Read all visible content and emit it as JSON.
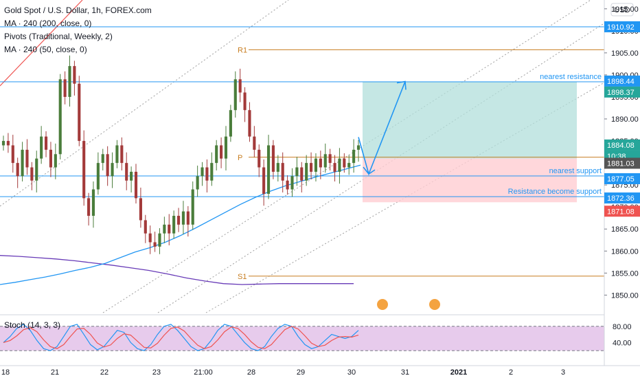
{
  "legend": {
    "title": "Gold Spot / U.S. Dollar, 1h, FOREX.com",
    "ma200": "MA · 240 (200, close, 0)",
    "pivots": "Pivots (Traditional, Weekly, 2)",
    "ma50": "MA · 240 (50, close, 0)"
  },
  "currency_label": "USD",
  "stoch_label": "Stoch (14, 3, 3)",
  "colors": {
    "up": "#26a69a",
    "down": "#ef5350",
    "candle_up": "#4a7d3b",
    "candle_down": "#a33a3a",
    "hline": "#2196f3",
    "pivot": "#c77c1e",
    "ma_fast": "#2196f3",
    "ma_slow": "#673ab7",
    "channel": "#9e9e9e",
    "stoch_bg": "#e1bee7",
    "profit": "#b2dfdb",
    "loss": "#ffcdd2"
  },
  "chart_data": {
    "type": "candlestick",
    "symbol": "XAUUSD",
    "interval": "1h",
    "ylim": [
      1846,
      1917
    ],
    "y_ticks": [
      1850.0,
      1855.0,
      1860.0,
      1865.0,
      1870.0,
      1875.0,
      1880.0,
      1885.0,
      1890.0,
      1895.0,
      1900.0,
      1905.0,
      1910.0,
      1915.0
    ],
    "x_ticks": [
      "18",
      "21",
      "22",
      "23",
      "21:00",
      "28",
      "29",
      "30",
      "31",
      "2021",
      "2",
      "3"
    ],
    "close_series": [
      1885,
      1884,
      1880,
      1877,
      1883,
      1879,
      1876,
      1881,
      1886,
      1883,
      1879,
      1882,
      1899,
      1895,
      1902,
      1898,
      1885,
      1872,
      1868,
      1874,
      1880,
      1882,
      1877,
      1880,
      1884,
      1880,
      1876,
      1878,
      1872,
      1867,
      1864,
      1862,
      1861,
      1864,
      1866,
      1864,
      1868,
      1866,
      1869,
      1866,
      1874,
      1877,
      1879,
      1876,
      1880,
      1884,
      1881,
      1886,
      1892,
      1899,
      1896,
      1892,
      1886,
      1883,
      1879,
      1873,
      1884,
      1878,
      1880,
      1876,
      1874,
      1877,
      1879,
      1876,
      1880,
      1878,
      1881,
      1879,
      1882,
      1880,
      1878,
      1881,
      1879,
      1880,
      1883,
      1884
    ],
    "hlines": [
      {
        "price": 1910.92,
        "label": ""
      },
      {
        "price": 1898.44,
        "label": "nearest resistance"
      },
      {
        "price": 1877.05,
        "label": "nearest support"
      },
      {
        "price": 1872.36,
        "label": "Resistance become support"
      }
    ],
    "pivots": [
      {
        "name": "R1",
        "price": 1905.7
      },
      {
        "name": "P",
        "price": 1881.3
      },
      {
        "name": "S1",
        "price": 1854.3
      }
    ],
    "ma_fast_series": [
      1852.4,
      1852.9,
      1853.5,
      1854.1,
      1854.8,
      1855.6,
      1856.3,
      1857.2,
      1858.5,
      1859.8,
      1860.8,
      1862.0,
      1863.5,
      1865.2,
      1867.0,
      1868.8,
      1870.6,
      1872.2,
      1873.6,
      1874.8,
      1875.8,
      1876.8,
      1877.7,
      1878.6,
      1879.5
    ],
    "ma_slow_series": [
      1859.0,
      1858.8,
      1858.5,
      1858.2,
      1857.8,
      1857.3,
      1856.8,
      1856.2,
      1855.6,
      1854.8,
      1853.9,
      1853.2,
      1852.6,
      1852.4,
      1852.5,
      1852.6,
      1852.6,
      1852.6,
      1852.6,
      1852.6
    ],
    "price_labels": [
      {
        "value": "1910.92",
        "color": "#2196f3"
      },
      {
        "value": "1898.44",
        "color": "#2196f3"
      },
      {
        "value": "1898.37",
        "color": "#26a69a"
      },
      {
        "value": "1884.08",
        "color": "#26a69a"
      },
      {
        "value": "10:38",
        "color": "#26a69a"
      },
      {
        "value": "1881.03",
        "color": "#555555"
      },
      {
        "value": "1877.05",
        "color": "#2196f3"
      },
      {
        "value": "1872.36",
        "color": "#2196f3"
      },
      {
        "value": "1871.08",
        "color": "#ef5350"
      }
    ],
    "position": {
      "entry": 1881.03,
      "target": 1898.37,
      "stop": 1871.08
    },
    "stoch": {
      "ylim": [
        0,
        100
      ],
      "ticks": [
        80.0,
        40.0
      ],
      "band": [
        20,
        80
      ],
      "k": [
        40,
        55,
        75,
        85,
        70,
        45,
        25,
        20,
        30,
        55,
        80,
        85,
        60,
        35,
        22,
        30,
        50,
        70,
        65,
        40,
        25,
        20,
        35,
        60,
        80,
        85,
        70,
        50,
        30,
        20,
        25,
        45,
        70,
        85,
        80,
        60,
        40,
        25,
        20,
        30,
        55,
        75,
        85,
        80,
        55,
        35,
        25,
        30,
        45,
        60,
        55,
        50,
        55,
        70
      ]
    }
  }
}
